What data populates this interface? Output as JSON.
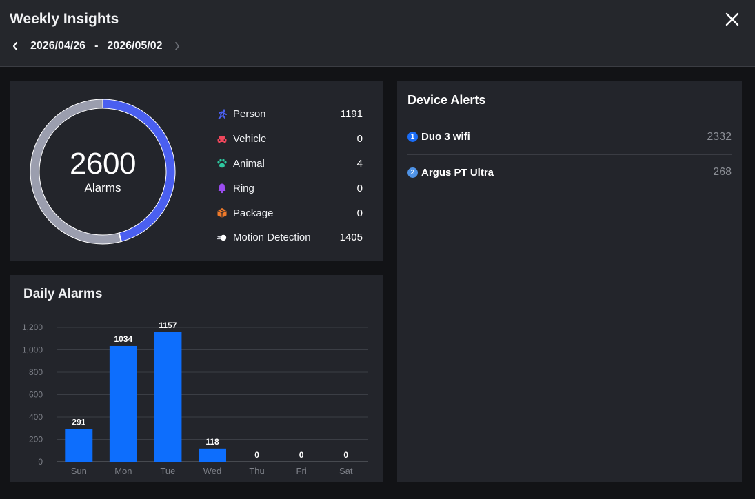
{
  "header": {
    "title": "Weekly Insights",
    "date_start": "2026/04/26",
    "date_separator": "-",
    "date_end": "2026/05/02"
  },
  "summary": {
    "total": "2600",
    "total_label": "Alarms",
    "categories": [
      {
        "name": "Person",
        "value": "1191",
        "icon": "running-person-icon",
        "color": "#4a5ff0"
      },
      {
        "name": "Vehicle",
        "value": "0",
        "icon": "car-icon",
        "color": "#f0475c"
      },
      {
        "name": "Animal",
        "value": "4",
        "icon": "paw-icon",
        "color": "#2ec9a0"
      },
      {
        "name": "Ring",
        "value": "0",
        "icon": "bell-icon",
        "color": "#9b4cf0"
      },
      {
        "name": "Package",
        "value": "0",
        "icon": "package-icon",
        "color": "#f07a2a"
      },
      {
        "name": "Motion Detection",
        "value": "1405",
        "icon": "motion-icon",
        "color": "#ffffff"
      }
    ],
    "donut_colors": {
      "person": "#4a5ff0",
      "motion": "#9b9eae"
    }
  },
  "daily": {
    "title": "Daily Alarms"
  },
  "chart_data": {
    "type": "bar",
    "categories": [
      "Sun",
      "Mon",
      "Tue",
      "Wed",
      "Thu",
      "Fri",
      "Sat"
    ],
    "values": [
      291,
      1034,
      1157,
      118,
      0,
      0,
      0
    ],
    "ylim": [
      0,
      1200
    ],
    "yticks": [
      "0",
      "200",
      "400",
      "600",
      "800",
      "1,000",
      "1,200"
    ],
    "xlabel": "",
    "ylabel": "",
    "grid": true,
    "bar_color": "#0d6efd"
  },
  "devices": {
    "title": "Device Alerts",
    "items": [
      {
        "rank": "1",
        "name": "Duo 3 wifi",
        "count": "2332",
        "rank_color": "#1a6cf5"
      },
      {
        "rank": "2",
        "name": "Argus PT Ultra",
        "count": "268",
        "rank_color": "#4f93e6"
      }
    ]
  }
}
